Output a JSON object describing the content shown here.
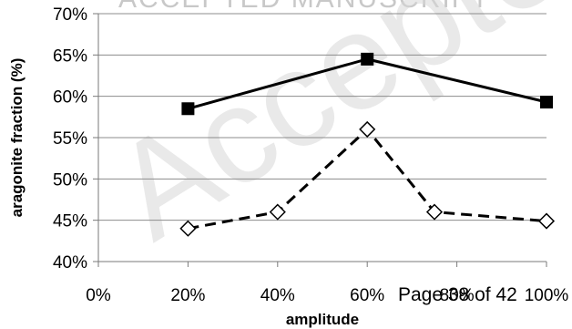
{
  "header": {
    "text": "ACCEPTED MANUSCRIPT"
  },
  "watermark": {
    "text": "Accepted"
  },
  "footer": {
    "text": "Page 38 of 42"
  },
  "chart_data": {
    "type": "line",
    "title": "",
    "xlabel": "amplitude",
    "ylabel": "aragonite fraction (%)",
    "xlim": [
      0,
      100
    ],
    "ylim": [
      40,
      70
    ],
    "x_ticks": [
      0,
      20,
      40,
      60,
      80,
      100
    ],
    "x_tick_labels": [
      "0%",
      "20%",
      "40%",
      "60%",
      "80%",
      "100%"
    ],
    "y_ticks": [
      40,
      45,
      50,
      55,
      60,
      65,
      70
    ],
    "y_tick_labels": [
      "40%",
      "45%",
      "50%",
      "55%",
      "60%",
      "65%",
      "70%"
    ],
    "grid": "horizontal",
    "legend": "none",
    "series": [
      {
        "style": "solid",
        "marker": "filled-square",
        "color": "#000000",
        "points": [
          {
            "x": 20,
            "y": 58.5
          },
          {
            "x": 60,
            "y": 64.5
          },
          {
            "x": 100,
            "y": 59.3
          }
        ]
      },
      {
        "style": "dashed",
        "marker": "open-diamond",
        "color": "#000000",
        "points": [
          {
            "x": 20,
            "y": 44
          },
          {
            "x": 40,
            "y": 46
          },
          {
            "x": 60,
            "y": 56
          },
          {
            "x": 75,
            "y": 46
          },
          {
            "x": 100,
            "y": 44.9
          }
        ]
      }
    ]
  }
}
